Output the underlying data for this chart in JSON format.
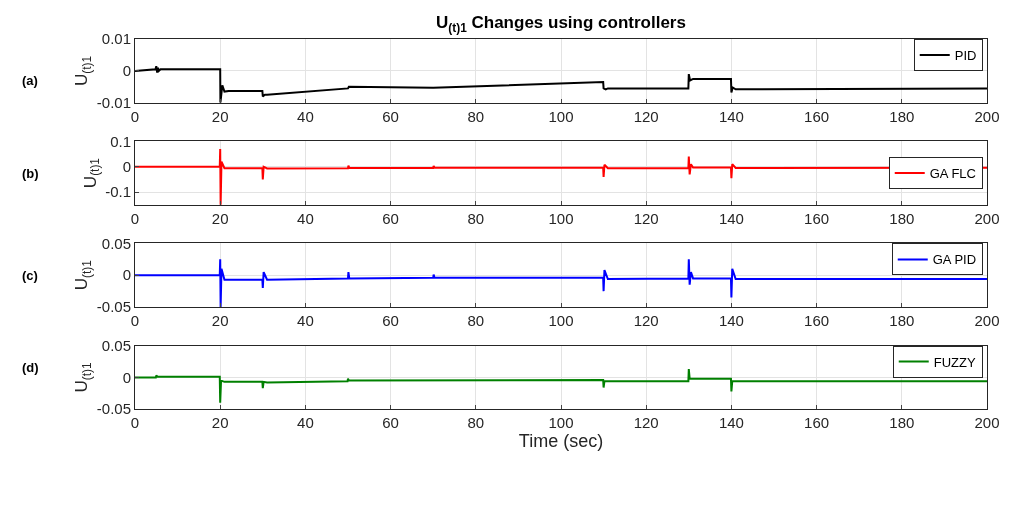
{
  "chart_data": [
    {
      "type": "line",
      "title": "U$_{(t)1}$ Changes using controllers",
      "ylabel": "U$_{(t)1}$",
      "annotations": [
        "(a)"
      ],
      "xlim": [
        0,
        200
      ],
      "xticks": [
        0,
        20,
        40,
        60,
        80,
        100,
        120,
        140,
        160,
        180,
        200
      ],
      "ylim": [
        -0.01,
        0.01
      ],
      "yticks": [
        -0.01,
        0,
        0.01
      ],
      "grid": true,
      "legend": "top right",
      "series": [
        {
          "name": "PID",
          "color": "#000000",
          "x": [
            0,
            4.8,
            5,
            5.2,
            5.4,
            5.6,
            6,
            20,
            20.05,
            20.5,
            21,
            22,
            29.9,
            30,
            30.5,
            31,
            50,
            50.2,
            70,
            109.9,
            110,
            110.5,
            111,
            129.9,
            130,
            130.3,
            131,
            139.9,
            140,
            140.3,
            141,
            200
          ],
          "values": [
            0,
            0.0005,
            0.0015,
            -0.0005,
            0.001,
            0,
            0.0005,
            0.0005,
            -0.01,
            -0.0045,
            -0.0065,
            -0.0063,
            -0.0063,
            -0.008,
            -0.0075,
            -0.0075,
            -0.0055,
            -0.005,
            -0.0053,
            -0.0035,
            -0.0055,
            -0.0058,
            -0.0055,
            -0.0055,
            -0.001,
            -0.003,
            -0.0025,
            -0.0025,
            -0.0068,
            -0.0052,
            -0.0058,
            -0.0055
          ]
        }
      ]
    },
    {
      "type": "line",
      "ylabel": "U$_{(t)1}$",
      "annotations": [
        "(b)"
      ],
      "xlim": [
        0,
        200
      ],
      "xticks": [
        0,
        20,
        40,
        60,
        80,
        100,
        120,
        140,
        160,
        180,
        200
      ],
      "ylim": [
        -0.15,
        0.1
      ],
      "yticks": [
        -0.1,
        0,
        0.1
      ],
      "grid": true,
      "legend": "right",
      "series": [
        {
          "name": "GA FLC",
          "color": "#ff0000",
          "x": [
            0,
            19.9,
            20,
            20.1,
            20.3,
            21,
            29.9,
            30,
            30.2,
            31,
            50,
            50.1,
            50.3,
            70,
            70.1,
            70.3,
            109.9,
            110,
            110.2,
            111,
            129.9,
            130,
            130.2,
            130.5,
            131,
            139.9,
            140,
            140.2,
            141,
            200
          ],
          "values": [
            0,
            0,
            0.07,
            -0.15,
            0.02,
            -0.006,
            -0.006,
            -0.05,
            0,
            -0.007,
            -0.006,
            0.004,
            -0.005,
            -0.005,
            0.003,
            -0.004,
            -0.004,
            -0.04,
            0.008,
            -0.006,
            -0.005,
            0.04,
            -0.03,
            0.01,
            -0.003,
            -0.003,
            -0.045,
            0.01,
            -0.005,
            -0.004
          ]
        }
      ]
    },
    {
      "type": "line",
      "ylabel": "U$_{(t)1}$",
      "annotations": [
        "(c)"
      ],
      "xlim": [
        0,
        200
      ],
      "xticks": [
        0,
        20,
        40,
        60,
        80,
        100,
        120,
        140,
        160,
        180,
        200
      ],
      "ylim": [
        -0.05,
        0.05
      ],
      "yticks": [
        -0.05,
        0,
        0.05
      ],
      "grid": true,
      "legend": "top right",
      "series": [
        {
          "name": "GA PID",
          "color": "#0000ff",
          "x": [
            0,
            19.9,
            20,
            20.1,
            20.3,
            21,
            29.9,
            30,
            30.2,
            31,
            50,
            50.1,
            50.3,
            70,
            70.1,
            70.3,
            109.9,
            110,
            110.2,
            111,
            129.9,
            130,
            130.2,
            130.5,
            131,
            139.9,
            140,
            140.2,
            141,
            200
          ],
          "values": [
            0,
            0,
            0.025,
            -0.05,
            0.01,
            -0.007,
            -0.007,
            -0.02,
            0.005,
            -0.007,
            -0.005,
            0.005,
            -0.005,
            -0.004,
            0.001,
            -0.004,
            -0.004,
            -0.025,
            0.008,
            -0.006,
            -0.005,
            0.025,
            -0.015,
            0.005,
            -0.005,
            -0.005,
            -0.035,
            0.01,
            -0.006,
            -0.006
          ]
        }
      ]
    },
    {
      "type": "line",
      "ylabel": "U$_{(t)1}$",
      "xlabel": "Time (sec)",
      "annotations": [
        "(d)"
      ],
      "xlim": [
        0,
        200
      ],
      "xticks": [
        0,
        20,
        40,
        60,
        80,
        100,
        120,
        140,
        160,
        180,
        200
      ],
      "ylim": [
        -0.05,
        0.05
      ],
      "yticks": [
        -0.05,
        0,
        0.05
      ],
      "grid": true,
      "legend": "top right",
      "series": [
        {
          "name": "FUZZY",
          "color": "#008000",
          "x": [
            0,
            4.9,
            5,
            5.3,
            19.9,
            20,
            20.2,
            21,
            29.9,
            30,
            30.2,
            31,
            49.9,
            50,
            50.2,
            109.9,
            110,
            110.2,
            111,
            129.9,
            130,
            130.2,
            131,
            139.9,
            140,
            140.2,
            141,
            200
          ],
          "values": [
            0,
            0,
            0.003,
            0.001,
            0.001,
            -0.04,
            -0.005,
            -0.007,
            -0.007,
            -0.017,
            -0.007,
            -0.008,
            -0.006,
            -0.002,
            -0.005,
            -0.004,
            -0.016,
            -0.006,
            -0.006,
            -0.006,
            0.013,
            -0.002,
            -0.002,
            -0.002,
            -0.022,
            -0.006,
            -0.006,
            -0.006
          ]
        }
      ]
    }
  ]
}
